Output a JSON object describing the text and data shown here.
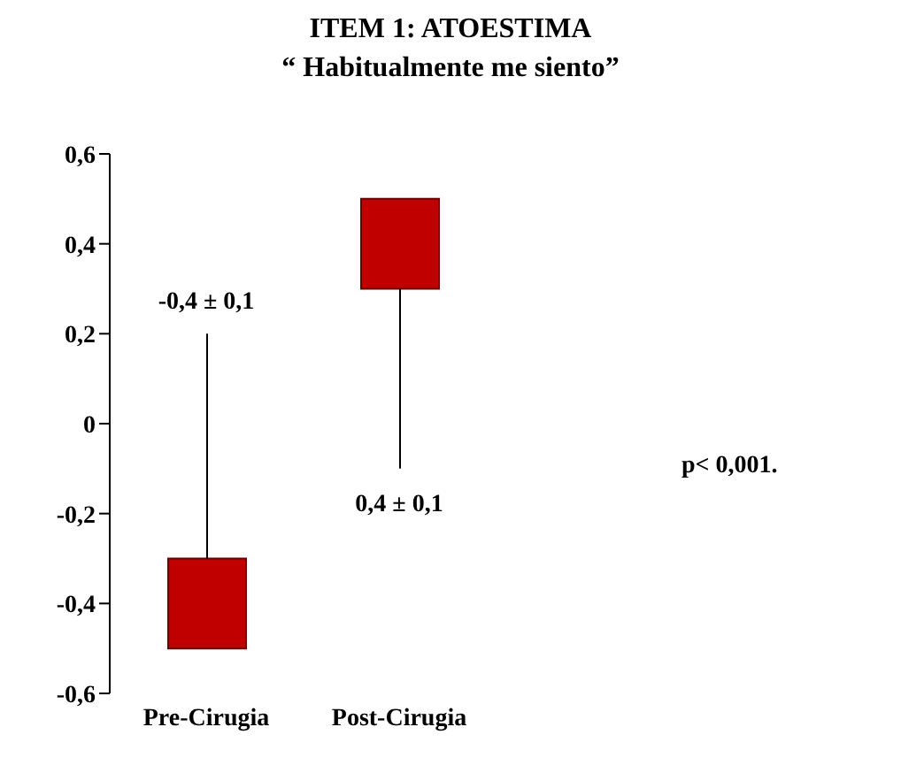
{
  "chart_data": {
    "type": "bar",
    "title": "ITEM 1: ATOESTIMA",
    "subtitle": "“ Habitualmente me siento”",
    "categories": [
      "Pre-Cirugia",
      "Post-Cirugia"
    ],
    "base": [
      -0.5,
      0.3
    ],
    "values": [
      0.2,
      0.2
    ],
    "errors": [
      [
        -0.3,
        0.2
      ],
      [
        -0.1,
        0.3
      ]
    ],
    "color": "#c00000",
    "ylim": [
      -0.6,
      0.6
    ],
    "yticks": [
      {
        "value": -0.6,
        "label": "-0,6"
      },
      {
        "value": -0.4,
        "label": "-0,4"
      },
      {
        "value": -0.2,
        "label": "-0,2"
      },
      {
        "value": 0,
        "label": "0"
      },
      {
        "value": 0.2,
        "label": "0,2"
      },
      {
        "value": 0.4,
        "label": "0,4"
      },
      {
        "value": 0.6,
        "label": "0,6"
      }
    ],
    "annotations": [
      {
        "text": "-0,4 ± 0,1",
        "x": "Pre-Cirugia",
        "y": 0.2
      },
      {
        "text": "0,4 ± 0,1",
        "x": "Post-Cirugia",
        "y": -0.1
      },
      "p< 0,001."
    ]
  }
}
